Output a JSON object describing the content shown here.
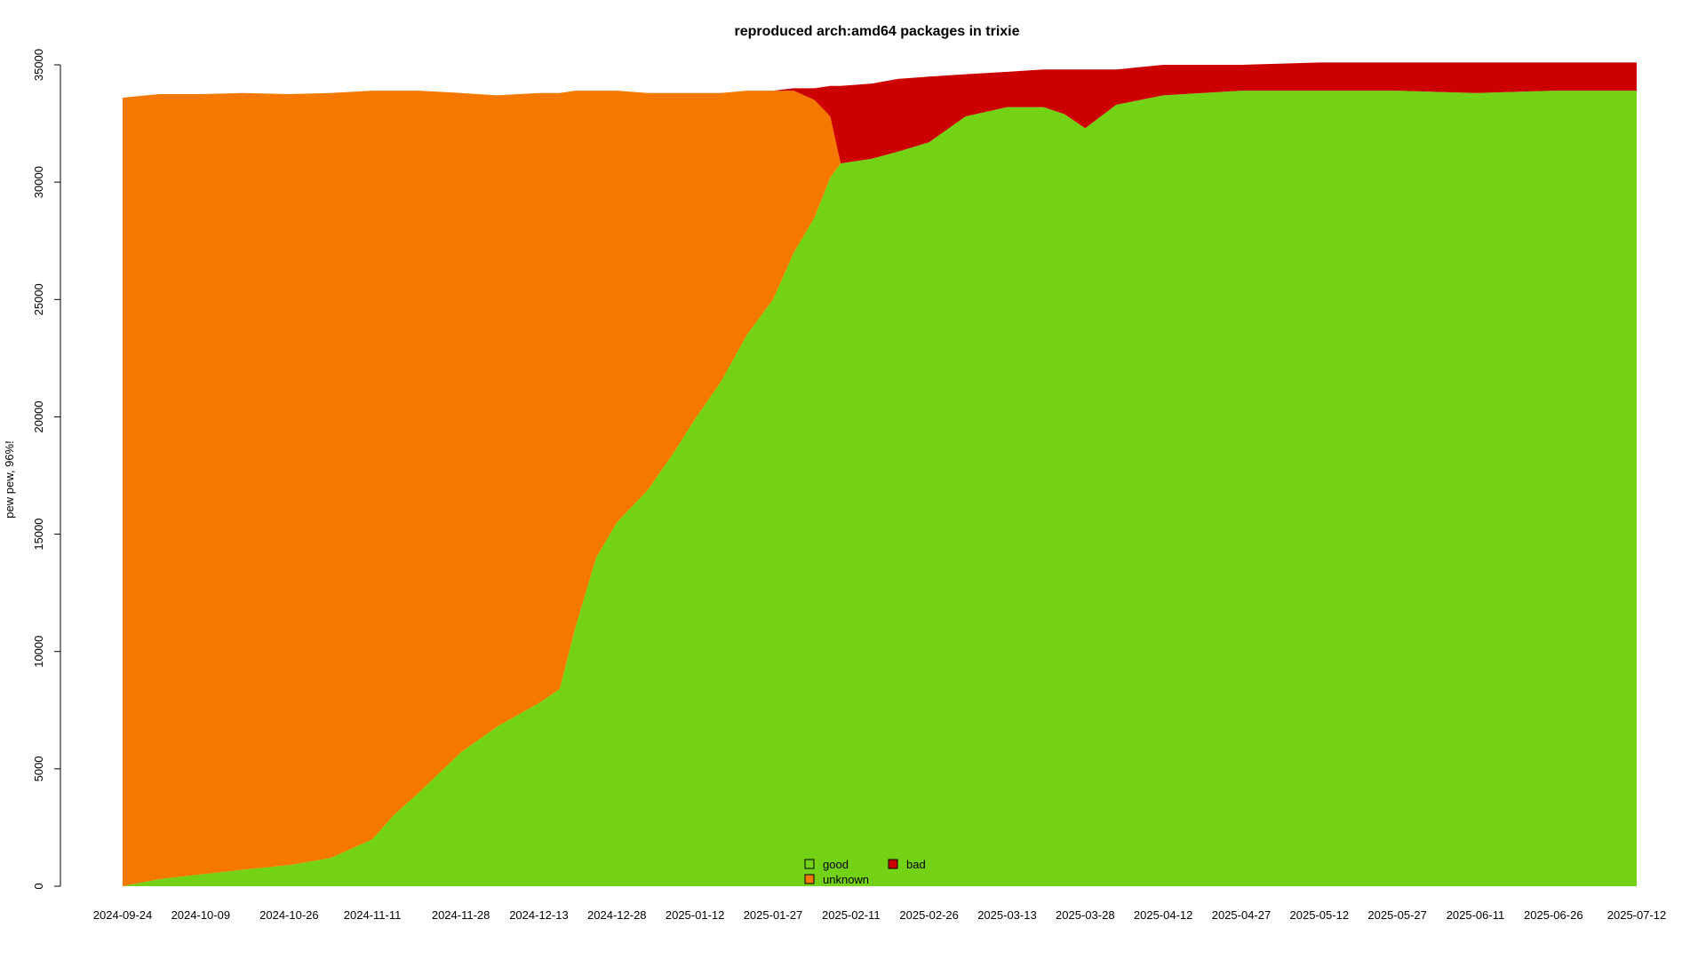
{
  "chart_data": {
    "type": "area",
    "stacked": true,
    "title": "reproduced arch:amd64 packages in trixie",
    "xlabel": "",
    "ylabel": "pew pew, 96%!",
    "ylim": [
      0,
      35000
    ],
    "y_ticks": [
      0,
      5000,
      10000,
      15000,
      20000,
      25000,
      30000,
      35000
    ],
    "x_range": [
      "2024-09-24",
      "2025-07-12"
    ],
    "x_ticks": [
      "2024-09-24",
      "2024-10-09",
      "2024-10-26",
      "2024-11-11",
      "2024-11-28",
      "2024-12-13",
      "2024-12-28",
      "2025-01-12",
      "2025-01-27",
      "2025-02-11",
      "2025-02-26",
      "2025-03-13",
      "2025-03-28",
      "2025-04-12",
      "2025-04-27",
      "2025-05-12",
      "2025-05-27",
      "2025-06-11",
      "2025-06-26",
      "2025-07-12"
    ],
    "grid": false,
    "legend": {
      "placement": "bottom-center",
      "entries": [
        "good",
        "unknown",
        "bad"
      ]
    },
    "colors": {
      "good": "#73d216",
      "unknown": "#f57900",
      "bad": "#cc0000"
    },
    "x": [
      "2024-09-24",
      "2024-10-01",
      "2024-10-09",
      "2024-10-17",
      "2024-10-26",
      "2024-11-03",
      "2024-11-11",
      "2024-11-15",
      "2024-11-20",
      "2024-11-28",
      "2024-12-05",
      "2024-12-13",
      "2024-12-17",
      "2024-12-20",
      "2024-12-24",
      "2024-12-28",
      "2025-01-03",
      "2025-01-08",
      "2025-01-12",
      "2025-01-17",
      "2025-01-22",
      "2025-01-27",
      "2025-01-31",
      "2025-02-04",
      "2025-02-07",
      "2025-02-09",
      "2025-02-15",
      "2025-02-20",
      "2025-02-26",
      "2025-03-05",
      "2025-03-13",
      "2025-03-20",
      "2025-03-24",
      "2025-03-28",
      "2025-04-03",
      "2025-04-12",
      "2025-04-27",
      "2025-05-12",
      "2025-05-27",
      "2025-06-11",
      "2025-06-26",
      "2025-07-12"
    ],
    "series": [
      {
        "name": "good",
        "values": [
          0,
          300,
          500,
          700,
          900,
          1200,
          2000,
          3000,
          4000,
          5700,
          6800,
          7800,
          8400,
          11000,
          14000,
          15500,
          16900,
          18500,
          19900,
          21500,
          23500,
          25000,
          27000,
          28500,
          30200,
          30800,
          31000,
          31300,
          31700,
          32800,
          33200,
          33200,
          32900,
          32300,
          33300,
          33700,
          33900,
          33900,
          33900,
          33800,
          33900,
          33900
        ]
      },
      {
        "name": "unknown",
        "values": [
          33600,
          33450,
          33250,
          33100,
          32850,
          32600,
          31900,
          30900,
          29900,
          28100,
          26900,
          26000,
          25400,
          22900,
          19900,
          18400,
          16900,
          15300,
          13900,
          12300,
          10400,
          8900,
          6900,
          5000,
          2600,
          0,
          0,
          0,
          0,
          0,
          0,
          0,
          0,
          0,
          0,
          0,
          0,
          0,
          0,
          0,
          0,
          0
        ]
      },
      {
        "name": "bad",
        "values": [
          0,
          0,
          0,
          0,
          0,
          0,
          0,
          0,
          0,
          0,
          0,
          0,
          0,
          0,
          0,
          0,
          0,
          0,
          0,
          0,
          0,
          0,
          100,
          500,
          1300,
          3300,
          3200,
          3100,
          2800,
          1800,
          1500,
          1600,
          1900,
          2500,
          1500,
          1300,
          1100,
          1200,
          1200,
          1300,
          1200,
          1200
        ]
      }
    ]
  }
}
